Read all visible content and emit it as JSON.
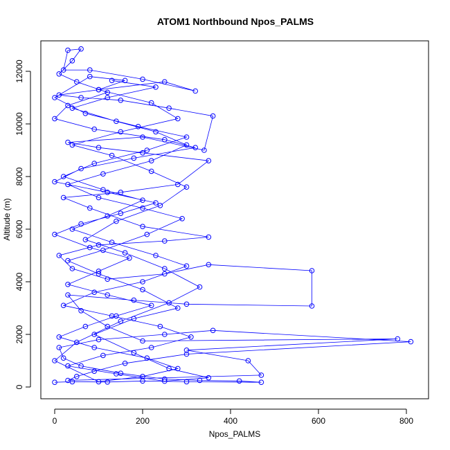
{
  "chart_data": {
    "type": "scatter",
    "title": "ATOM1 Northbound Npos_PALMS",
    "xlabel": "Npos_PALMS",
    "ylabel": "Altitude (m)",
    "xlim": [
      0,
      820
    ],
    "ylim": [
      0,
      12850
    ],
    "x_ticks": [
      0,
      200,
      400,
      600,
      800
    ],
    "y_ticks": [
      0,
      2000,
      4000,
      6000,
      8000,
      10000,
      12000
    ],
    "grid": false,
    "series": [
      {
        "color": "#0000ff",
        "marker": "open-circle",
        "connected": true,
        "points": [
          [
            0,
            180
          ],
          [
            40,
            200
          ],
          [
            120,
            190
          ],
          [
            200,
            230
          ],
          [
            300,
            200
          ],
          [
            470,
            180
          ],
          [
            420,
            230
          ],
          [
            330,
            250
          ],
          [
            250,
            300
          ],
          [
            150,
            520
          ],
          [
            60,
            800
          ],
          [
            20,
            1100
          ],
          [
            10,
            1500
          ],
          [
            100,
            1800
          ],
          [
            250,
            2000
          ],
          [
            360,
            2150
          ],
          [
            810,
            1720
          ],
          [
            300,
            1250
          ],
          [
            160,
            900
          ],
          [
            90,
            600
          ],
          [
            50,
            400
          ],
          [
            30,
            250
          ],
          [
            470,
            450
          ],
          [
            440,
            1000
          ],
          [
            300,
            1400
          ],
          [
            780,
            1830
          ],
          [
            200,
            1750
          ],
          [
            120,
            2300
          ],
          [
            60,
            2900
          ],
          [
            30,
            3500
          ],
          [
            180,
            3300
          ],
          [
            300,
            3150
          ],
          [
            585,
            3080
          ],
          [
            585,
            4420
          ],
          [
            350,
            4650
          ],
          [
            250,
            4300
          ],
          [
            120,
            4100
          ],
          [
            40,
            4500
          ],
          [
            10,
            5000
          ],
          [
            100,
            5400
          ],
          [
            250,
            5550
          ],
          [
            350,
            5700
          ],
          [
            200,
            6100
          ],
          [
            80,
            6800
          ],
          [
            20,
            7200
          ],
          [
            150,
            7400
          ],
          [
            280,
            7700
          ],
          [
            350,
            8600
          ],
          [
            200,
            8900
          ],
          [
            100,
            9100
          ],
          [
            30,
            9300
          ],
          [
            200,
            9500
          ],
          [
            340,
            9000
          ],
          [
            360,
            10300
          ],
          [
            260,
            10600
          ],
          [
            150,
            10900
          ],
          [
            60,
            11000
          ],
          [
            10,
            11100
          ],
          [
            100,
            11300
          ],
          [
            250,
            11600
          ],
          [
            320,
            11250
          ],
          [
            200,
            11700
          ],
          [
            80,
            12050
          ],
          [
            20,
            12050
          ],
          [
            30,
            12800
          ],
          [
            60,
            12850
          ],
          [
            40,
            12400
          ],
          [
            10,
            11900
          ],
          [
            50,
            11600
          ],
          [
            120,
            11200
          ],
          [
            30,
            10700
          ],
          [
            0,
            10200
          ],
          [
            90,
            9800
          ],
          [
            250,
            9400
          ],
          [
            320,
            9100
          ],
          [
            180,
            8700
          ],
          [
            60,
            8300
          ],
          [
            0,
            7800
          ],
          [
            120,
            7400
          ],
          [
            230,
            7000
          ],
          [
            150,
            6600
          ],
          [
            60,
            6200
          ],
          [
            0,
            5800
          ],
          [
            80,
            5300
          ],
          [
            170,
            4900
          ],
          [
            100,
            4400
          ],
          [
            30,
            3900
          ],
          [
            120,
            3500
          ],
          [
            220,
            3100
          ],
          [
            140,
            2700
          ],
          [
            70,
            2300
          ],
          [
            10,
            1900
          ],
          [
            90,
            1500
          ],
          [
            210,
            1100
          ],
          [
            280,
            700
          ],
          [
            200,
            400
          ],
          [
            100,
            200
          ],
          [
            0,
            1000
          ],
          [
            50,
            1700
          ],
          [
            150,
            2500
          ],
          [
            260,
            3200
          ],
          [
            330,
            3800
          ],
          [
            250,
            4500
          ],
          [
            160,
            5100
          ],
          [
            70,
            5600
          ],
          [
            140,
            6300
          ],
          [
            240,
            6900
          ],
          [
            300,
            7600
          ],
          [
            220,
            8200
          ],
          [
            130,
            8800
          ],
          [
            40,
            9200
          ],
          [
            150,
            9700
          ],
          [
            280,
            10200
          ],
          [
            220,
            10800
          ],
          [
            100,
            11300
          ],
          [
            160,
            11650
          ],
          [
            80,
            11800
          ],
          [
            0,
            11000
          ],
          [
            70,
            10400
          ],
          [
            190,
            9900
          ],
          [
            300,
            9500
          ],
          [
            210,
            9000
          ],
          [
            90,
            8500
          ],
          [
            20,
            8000
          ],
          [
            110,
            7500
          ],
          [
            200,
            7100
          ],
          [
            120,
            6500
          ],
          [
            40,
            6000
          ],
          [
            130,
            5500
          ],
          [
            230,
            5000
          ],
          [
            300,
            4600
          ],
          [
            200,
            4000
          ],
          [
            90,
            3600
          ],
          [
            20,
            3100
          ],
          [
            130,
            2700
          ],
          [
            240,
            2300
          ],
          [
            310,
            1900
          ],
          [
            220,
            1500
          ],
          [
            110,
            1200
          ],
          [
            30,
            800
          ],
          [
            140,
            500
          ],
          [
            250,
            220
          ],
          [
            350,
            350
          ],
          [
            260,
            700
          ],
          [
            180,
            1300
          ],
          [
            90,
            2000
          ],
          [
            180,
            2600
          ],
          [
            280,
            3000
          ],
          [
            200,
            3700
          ],
          [
            100,
            4300
          ],
          [
            30,
            4800
          ],
          [
            110,
            5200
          ],
          [
            210,
            5800
          ],
          [
            290,
            6400
          ],
          [
            200,
            6800
          ],
          [
            100,
            7200
          ],
          [
            30,
            7700
          ],
          [
            110,
            8100
          ],
          [
            220,
            8600
          ],
          [
            300,
            9200
          ],
          [
            230,
            9700
          ],
          [
            140,
            10100
          ],
          [
            40,
            10600
          ],
          [
            120,
            11000
          ],
          [
            230,
            11400
          ],
          [
            130,
            11650
          ]
        ]
      }
    ]
  }
}
